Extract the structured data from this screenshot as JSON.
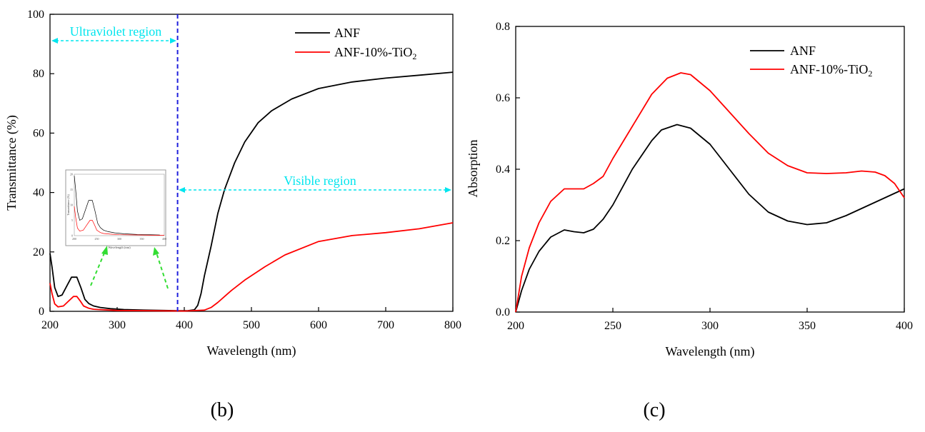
{
  "chart_data": [
    {
      "panel": "b",
      "type": "line",
      "panel_label": "(b)",
      "xlabel": "Wavelength (nm)",
      "ylabel": "Transmittance (%)",
      "xlim": [
        200,
        800
      ],
      "ylim": [
        0,
        100
      ],
      "xticks": [
        200,
        300,
        400,
        500,
        600,
        700,
        800
      ],
      "yticks": [
        0,
        20,
        40,
        60,
        80,
        100
      ],
      "legend": [
        {
          "label": "ANF",
          "color": "#000000"
        },
        {
          "label": "ANF-10%-TiO",
          "sub": "2",
          "color": "#ff0000"
        }
      ],
      "annotations": {
        "uv_label": "Ultraviolet region",
        "vis_label": "Visible region",
        "divider_x": 390,
        "annotation_color": "#00e5ee",
        "divider_color": "#1f1fdd",
        "inset_arrow_color": "#33dd33"
      },
      "inset": {
        "xlabel": "Wavelength (nm)",
        "ylabel": "Transmittance (%)",
        "xlim": [
          200,
          400
        ],
        "ylim": [
          0,
          20
        ],
        "xticks": [
          "200",
          "250",
          "300",
          "350",
          "400"
        ],
        "yticks": [
          "0",
          "5",
          "10",
          "15",
          "20"
        ]
      },
      "series": [
        {
          "name": "ANF",
          "color": "#000000",
          "x": [
            200,
            203,
            207,
            212,
            218,
            225,
            232,
            240,
            246,
            252,
            258,
            265,
            275,
            290,
            310,
            340,
            370,
            390,
            405,
            415,
            420,
            425,
            430,
            440,
            450,
            460,
            475,
            490,
            510,
            530,
            560,
            600,
            650,
            700,
            750,
            800
          ],
          "y": [
            19.5,
            15,
            8,
            5,
            5.5,
            8.5,
            11.5,
            11.5,
            8,
            4,
            2.6,
            1.8,
            1.3,
            0.9,
            0.6,
            0.4,
            0.3,
            0.2,
            0.2,
            0.5,
            2,
            6,
            12,
            22,
            33,
            41,
            50,
            57,
            63.5,
            67.5,
            71.5,
            75,
            77.2,
            78.5,
            79.5,
            80.5
          ]
        },
        {
          "name": "ANF-10%-TiO2",
          "color": "#ff0000",
          "x": [
            200,
            203,
            207,
            212,
            220,
            228,
            235,
            240,
            245,
            250,
            258,
            265,
            280,
            300,
            350,
            400,
            430,
            440,
            450,
            460,
            470,
            490,
            520,
            550,
            600,
            650,
            700,
            750,
            800
          ],
          "y": [
            9.5,
            6,
            2.5,
            1.5,
            1.8,
            3.5,
            5,
            5,
            3.5,
            1.8,
            1,
            0.7,
            0.5,
            0.3,
            0.2,
            0.1,
            0.4,
            1.3,
            3,
            5,
            7,
            10.5,
            15,
            19,
            23.5,
            25.5,
            26.5,
            27.8,
            29.8
          ]
        }
      ]
    },
    {
      "panel": "c",
      "type": "line",
      "panel_label": "(c)",
      "xlabel": "Wavelength (nm)",
      "ylabel": "Absorption",
      "xlim": [
        200,
        400
      ],
      "ylim": [
        0,
        0.8
      ],
      "xticks": [
        200,
        250,
        300,
        350,
        400
      ],
      "yticks": [
        "0.0",
        "0.2",
        "0.4",
        "0.6",
        "0.8"
      ],
      "legend": [
        {
          "label": "ANF",
          "color": "#000000"
        },
        {
          "label": "ANF-10%-TiO",
          "sub": "2",
          "color": "#ff0000"
        }
      ],
      "series": [
        {
          "name": "ANF",
          "color": "#000000",
          "x": [
            200,
            203,
            207,
            212,
            218,
            225,
            230,
            235,
            240,
            245,
            250,
            260,
            270,
            275,
            283,
            290,
            300,
            310,
            320,
            330,
            340,
            350,
            360,
            370,
            380,
            390,
            400
          ],
          "y": [
            0.0,
            0.06,
            0.12,
            0.17,
            0.21,
            0.23,
            0.225,
            0.222,
            0.232,
            0.26,
            0.3,
            0.4,
            0.48,
            0.51,
            0.525,
            0.515,
            0.47,
            0.4,
            0.33,
            0.28,
            0.255,
            0.245,
            0.25,
            0.27,
            0.295,
            0.32,
            0.345
          ]
        },
        {
          "name": "ANF-10%-TiO2",
          "color": "#ff0000",
          "x": [
            200,
            203,
            207,
            212,
            218,
            225,
            230,
            235,
            240,
            245,
            250,
            260,
            270,
            278,
            285,
            290,
            300,
            310,
            320,
            330,
            340,
            350,
            360,
            370,
            378,
            385,
            390,
            395,
            400
          ],
          "y": [
            0.0,
            0.1,
            0.18,
            0.25,
            0.31,
            0.345,
            0.345,
            0.345,
            0.36,
            0.38,
            0.43,
            0.52,
            0.61,
            0.655,
            0.67,
            0.665,
            0.62,
            0.56,
            0.5,
            0.445,
            0.41,
            0.39,
            0.388,
            0.39,
            0.395,
            0.392,
            0.382,
            0.36,
            0.32
          ]
        }
      ]
    }
  ]
}
